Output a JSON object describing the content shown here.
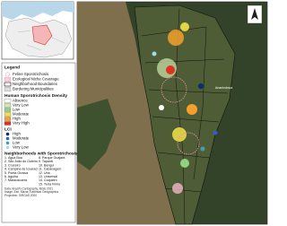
{
  "legend": {
    "title": "Legend",
    "layers": [
      "Feline Sporotrichosis",
      "Ecological Niche Coverage",
      "Neighborhood Boundaries",
      "Bordering Municipalities"
    ],
    "density": {
      "title": "Human Sporotrichosis Density",
      "classes": [
        {
          "label": "Absence",
          "color": "#ffffff"
        },
        {
          "label": "Very Low",
          "color": "#cfeab0"
        },
        {
          "label": "Low",
          "color": "#8fd47c"
        },
        {
          "label": "Moderate",
          "color": "#f3e24a"
        },
        {
          "label": "High",
          "color": "#f5a02c"
        },
        {
          "label": "Very High",
          "color": "#e3311f"
        }
      ]
    },
    "lci": {
      "title": "LCI",
      "classes": [
        {
          "label": "High",
          "color": "#0b2a78"
        },
        {
          "label": "Moderate",
          "color": "#2b63c4"
        },
        {
          "label": "Low",
          "color": "#3aa0b8"
        },
        {
          "label": "Very Low",
          "color": "#9fdcea"
        }
      ]
    },
    "neighborhoods": {
      "title": "Neighborhoods with Sporotrichosis",
      "items": [
        "1. Água Boa",
        "2. São João do Outeiro",
        "3. Cruzeiro",
        "4. Campina de Icoaraci",
        "5. Ponta Grossa",
        "6. Agulha",
        "7. Maracacuera",
        "8. Parque Guajará",
        "9. Tapanã",
        "10. Benguí",
        "11. Cabanagem",
        "12. Una",
        "13. Universal",
        "14. Coqueiro",
        "15. Terra Firme"
      ]
    }
  },
  "credits": [
    "Data: Brazil's Cartography, IBGE 2021",
    "Image: Esri, Maxar, Earthstar Geographics",
    "Projection: SIRGAS 2000"
  ],
  "map_labels": [
    "Ananindeua"
  ]
}
